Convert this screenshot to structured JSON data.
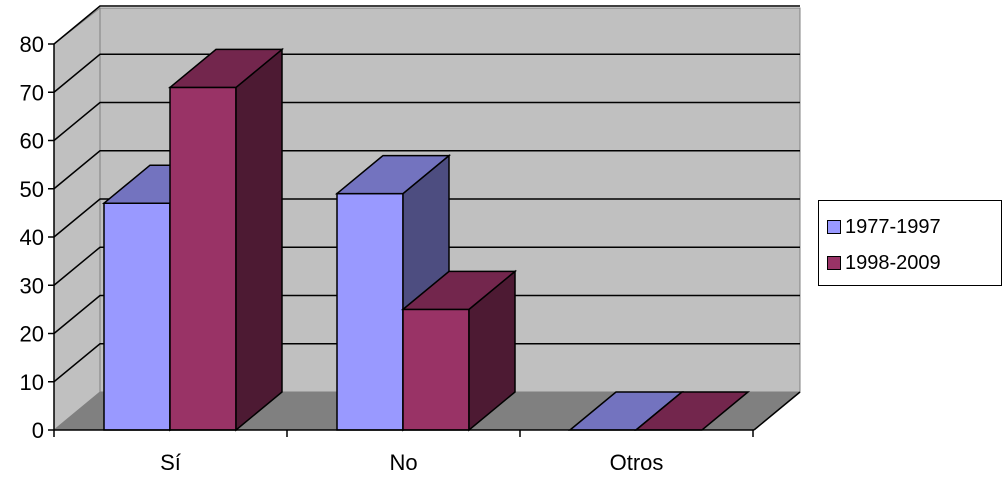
{
  "chart_data": {
    "type": "bar",
    "categories": [
      "Sí",
      "No",
      "Otros"
    ],
    "series": [
      {
        "name": "1977-1997",
        "values": [
          47,
          49,
          0
        ],
        "color": "#9999FF"
      },
      {
        "name": "1998-2009",
        "values": [
          71,
          25,
          0
        ],
        "color": "#993366"
      }
    ],
    "ylim": [
      0,
      80
    ],
    "yticks": [
      "0",
      "10",
      "20",
      "30",
      "40",
      "50",
      "60",
      "70",
      "80"
    ],
    "grid": true,
    "legend_position": "right",
    "wall_color": "#C0C0C0",
    "floor_color": "#808080",
    "style": "3d-clustered-column"
  }
}
